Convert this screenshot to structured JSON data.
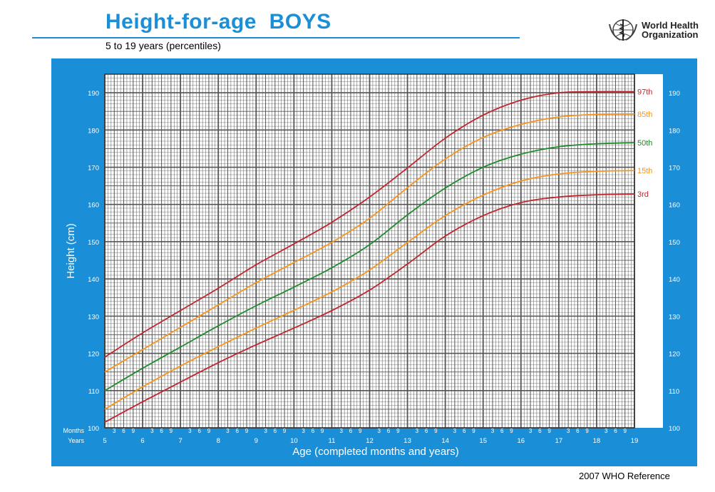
{
  "header": {
    "title": "Height-for-age  BOYS",
    "subtitle": "5 to 19 years (percentiles)"
  },
  "logo": {
    "line1": "World Health",
    "line2": "Organization"
  },
  "footer": {
    "reference": "2007 WHO Reference"
  },
  "colors": {
    "frame": "#1a8fd8",
    "red": "#c0272d",
    "orange": "#f7941d",
    "green": "#1e8c2c",
    "title": "#1a8fd8"
  },
  "chart_data": {
    "type": "line",
    "title": "Height-for-age  BOYS",
    "subtitle": "5 to 19 years (percentiles)",
    "xlabel": "Age (completed months and years)",
    "ylabel": "Height (cm)",
    "xlim": [
      5,
      19
    ],
    "ylim": [
      100,
      195
    ],
    "x_ticks": [
      "5",
      "6",
      "7",
      "8",
      "9",
      "10",
      "11",
      "12",
      "13",
      "14",
      "15",
      "16",
      "17",
      "18",
      "19"
    ],
    "y_ticks": [
      "100",
      "110",
      "120",
      "130",
      "140",
      "150",
      "160",
      "170",
      "180",
      "190"
    ],
    "months_label": "Months",
    "years_label": "Years",
    "month_ticks": [
      "3",
      "6",
      "9"
    ],
    "grid": true,
    "x": [
      5,
      6,
      7,
      8,
      9,
      10,
      11,
      12,
      13,
      14,
      15,
      16,
      17,
      18,
      19
    ],
    "series": [
      {
        "name": "97th",
        "color": "#c0272d",
        "values": [
          119,
          125.5,
          131.5,
          137.5,
          143.8,
          149.4,
          155.2,
          162,
          169.8,
          177.8,
          184,
          188,
          190,
          190.3,
          190.3
        ]
      },
      {
        "name": "85th",
        "color": "#f7941d",
        "values": [
          115,
          121,
          127,
          133,
          139,
          144.4,
          149.8,
          156.3,
          164.5,
          172.2,
          178,
          181.5,
          183.5,
          184.2,
          184.3
        ]
      },
      {
        "name": "50th",
        "color": "#1e8c2c",
        "values": [
          110,
          116,
          121.7,
          127.4,
          132.8,
          137.8,
          143,
          149.2,
          157.2,
          164.4,
          170,
          173.5,
          175.5,
          176.3,
          176.6
        ]
      },
      {
        "name": "15th",
        "color": "#f7941d",
        "values": [
          105,
          111,
          116.6,
          121.8,
          126.8,
          131.6,
          136.5,
          142.4,
          149.8,
          157,
          162.5,
          166.3,
          168.2,
          168.9,
          169.1
        ]
      },
      {
        "name": "3rd",
        "color": "#c0272d",
        "values": [
          101.5,
          107,
          112.3,
          117.5,
          122.3,
          126.8,
          131.5,
          137,
          144,
          151.5,
          157,
          160.5,
          162,
          162.6,
          162.8
        ]
      }
    ]
  }
}
